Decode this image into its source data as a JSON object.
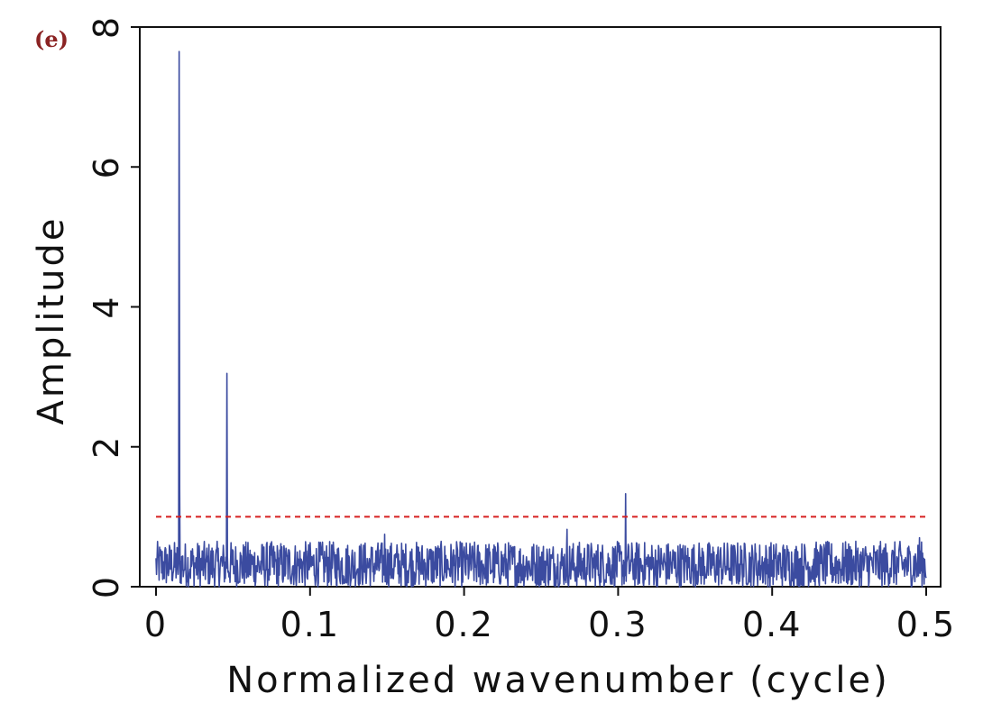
{
  "panel_label": "(e)",
  "colors": {
    "series": "#3b4ba0",
    "threshold": "#d62020",
    "axis": "#111111",
    "panel_label": "#8b2323"
  },
  "chart_data": {
    "type": "line",
    "xlabel": "Normalized wavenumber (cycle)",
    "ylabel": "Amplitude",
    "xlim": [
      0,
      0.5
    ],
    "ylim": [
      0,
      8
    ],
    "xticks": [
      0,
      0.1,
      0.2,
      0.3,
      0.4,
      0.5
    ],
    "xtick_labels": [
      "0",
      "0.1",
      "0.2",
      "0.3",
      "0.4",
      "0.5"
    ],
    "yticks": [
      0,
      2,
      4,
      6,
      8
    ],
    "ytick_labels": [
      "0",
      "2",
      "4",
      "6",
      "8"
    ],
    "grid": false,
    "series": [
      {
        "style": "solid",
        "noise_range": [
          0.0,
          0.65
        ],
        "n_points": 1500,
        "peaks": [
          {
            "x": 0.015,
            "y": 7.65
          },
          {
            "x": 0.0155,
            "y": 1.4
          },
          {
            "x": 0.046,
            "y": 3.05
          },
          {
            "x": 0.1485,
            "y": 0.75
          },
          {
            "x": 0.267,
            "y": 0.82
          },
          {
            "x": 0.305,
            "y": 1.33
          },
          {
            "x": 0.4955,
            "y": 0.7
          }
        ]
      },
      {
        "style": "dashed",
        "values": [
          {
            "x": 0,
            "y": 1.0
          },
          {
            "x": 0.5,
            "y": 1.0
          }
        ]
      }
    ]
  }
}
